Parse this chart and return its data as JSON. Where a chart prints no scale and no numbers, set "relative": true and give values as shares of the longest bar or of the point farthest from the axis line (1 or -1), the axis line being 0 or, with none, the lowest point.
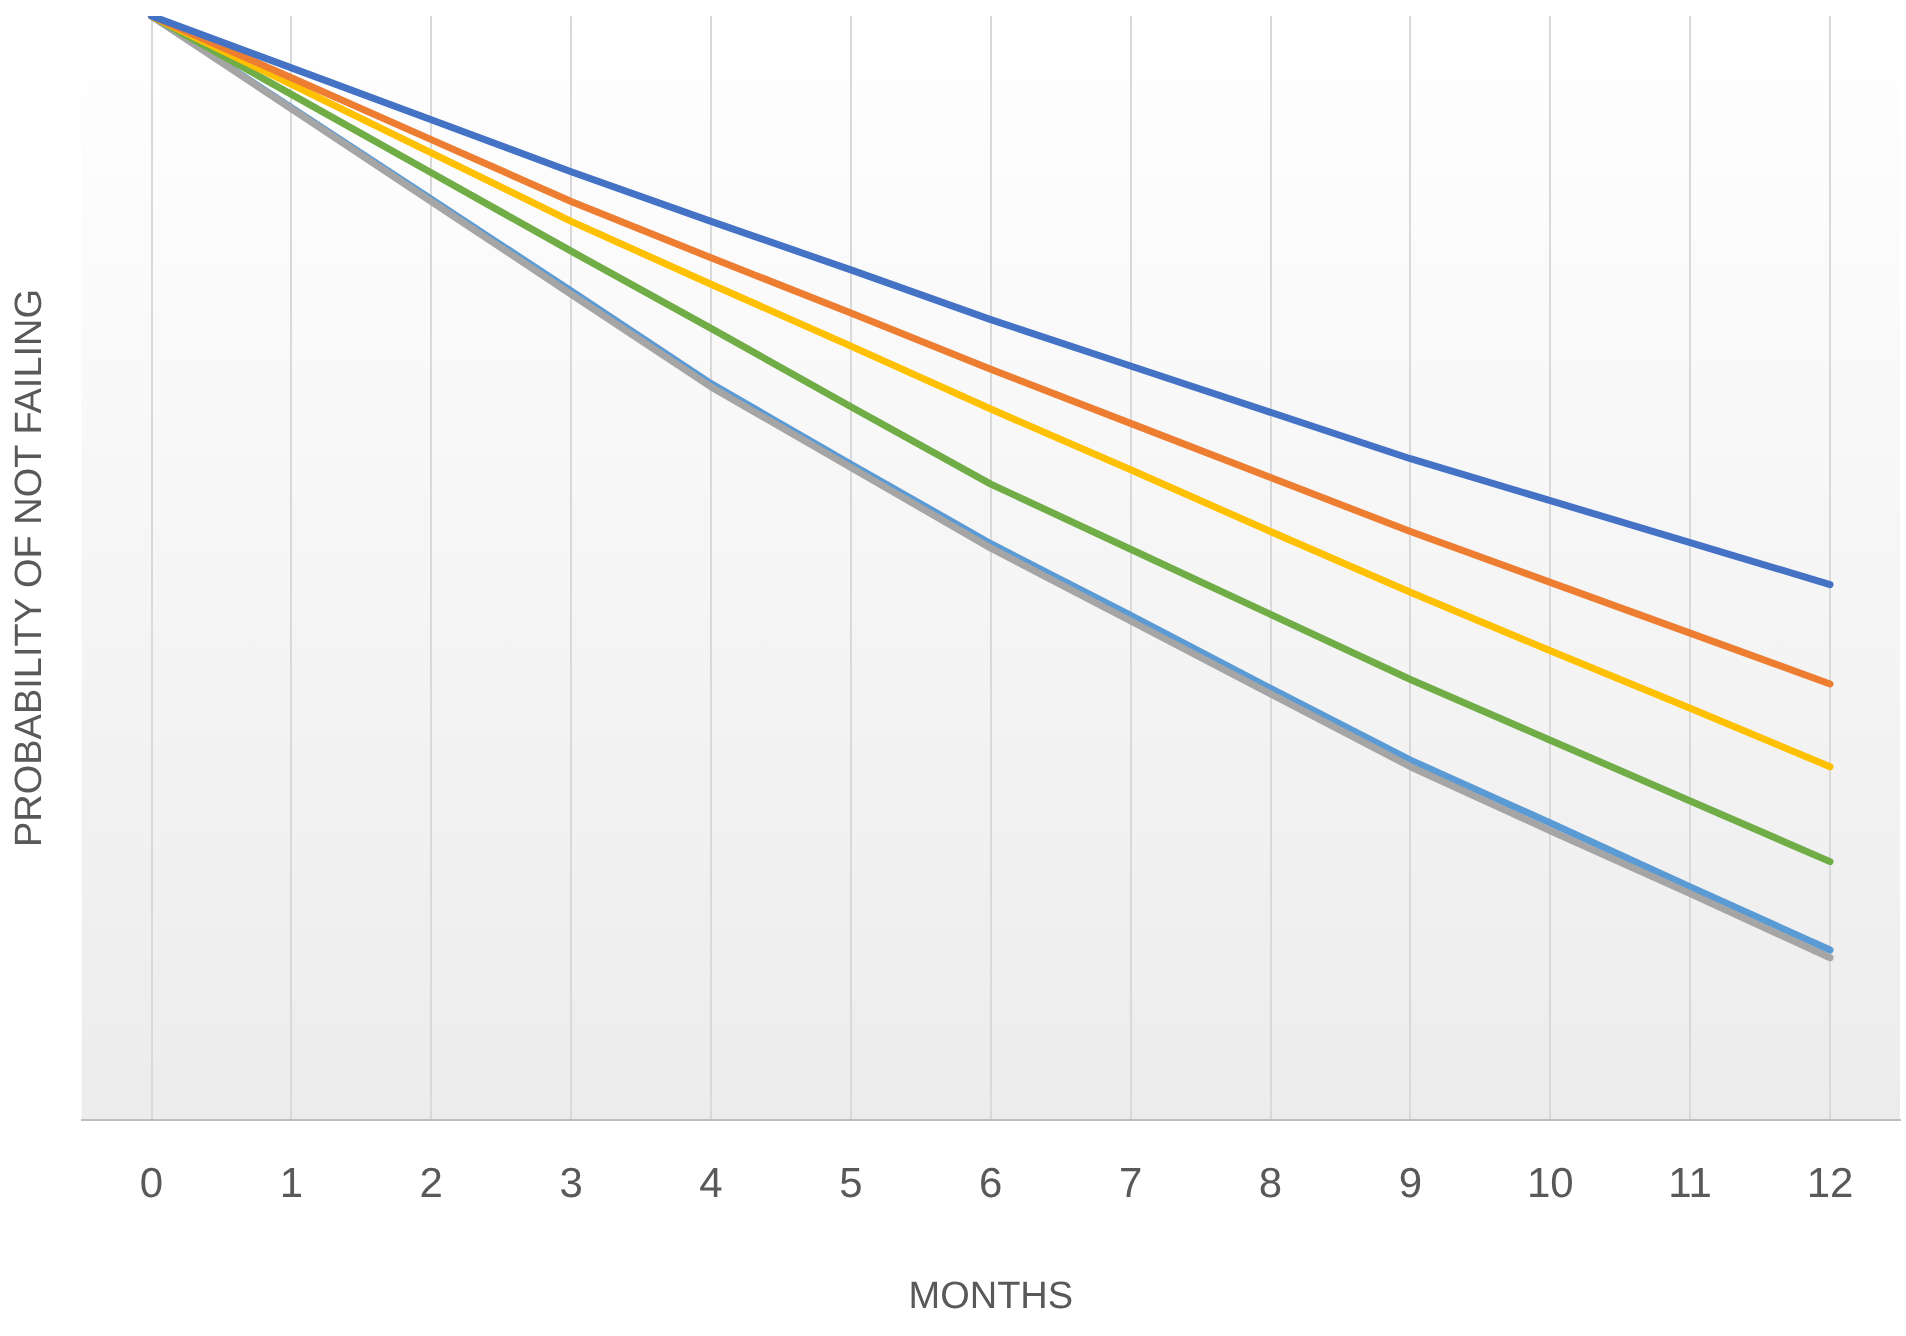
{
  "chart_data": {
    "type": "line",
    "relative": true,
    "xlabel": "MONTHS",
    "ylabel": "PROBABILITY OF NOT FAILING",
    "grid": "x",
    "marker": "none",
    "line_style": "solid",
    "x": [
      0,
      1,
      2,
      3,
      4,
      5,
      6,
      7,
      8,
      9,
      10,
      11,
      12
    ],
    "xlim": [
      -0.5,
      12.5
    ],
    "xticks": [
      0,
      1,
      2,
      3,
      4,
      5,
      6,
      7,
      8,
      9,
      10,
      11,
      12
    ],
    "series": [
      {
        "color": "#4472c4",
        "values": [
          1,
          0.953,
          0.906,
          0.859,
          0.814,
          0.77,
          0.725,
          0.683,
          0.641,
          0.599,
          0.561,
          0.523,
          0.485
        ]
      },
      {
        "color": "#ed7d31",
        "values": [
          1,
          0.944,
          0.888,
          0.832,
          0.781,
          0.731,
          0.68,
          0.631,
          0.582,
          0.533,
          0.487,
          0.441,
          0.395
        ]
      },
      {
        "color": "#ffc000",
        "values": [
          1,
          0.938,
          0.876,
          0.814,
          0.757,
          0.701,
          0.644,
          0.589,
          0.533,
          0.478,
          0.425,
          0.373,
          0.32
        ]
      },
      {
        "color": "#70ad47",
        "values": [
          1,
          0.929,
          0.858,
          0.787,
          0.717,
          0.646,
          0.576,
          0.517,
          0.458,
          0.399,
          0.344,
          0.289,
          0.234
        ]
      },
      {
        "color": "#a5a5a5",
        "values": [
          1,
          0.916,
          0.832,
          0.748,
          0.664,
          0.591,
          0.518,
          0.452,
          0.386,
          0.32,
          0.262,
          0.205,
          0.147
        ]
      },
      {
        "color": "#5b9bd5",
        "values": [
          1,
          0.917,
          0.834,
          0.751,
          0.667,
          0.594,
          0.522,
          0.457,
          0.391,
          0.326,
          0.269,
          0.211,
          0.154
        ]
      }
    ]
  }
}
